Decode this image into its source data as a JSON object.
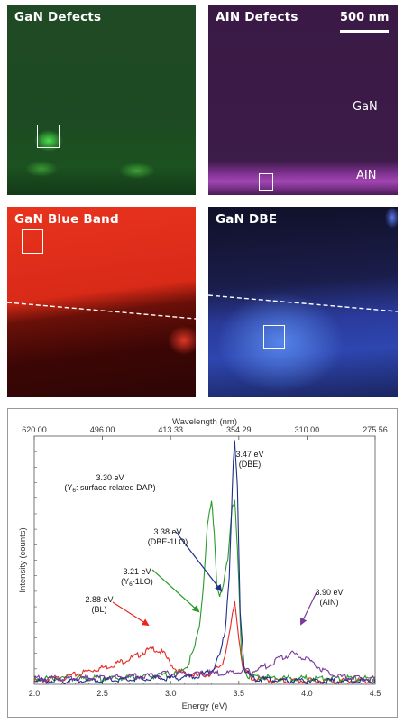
{
  "panels": {
    "gan_defects": {
      "title": "GaN Defects"
    },
    "ain_defects": {
      "title": "AIN Defects",
      "scale_label": "500 nm",
      "label_gan": "GaN",
      "label_ain": "AIN"
    },
    "gan_blue_band": {
      "title": "GaN Blue Band"
    },
    "gan_dbe": {
      "title": "GaN DBE"
    }
  },
  "colors": {
    "bl": "#e8281f",
    "yl": "#2a9a2a",
    "dbe": "#1f2f8a",
    "ain": "#7a3a9a",
    "axis": "#555555"
  },
  "chart_data": {
    "type": "line",
    "xlabel": "Energy (eV)",
    "x2label": "Wavelength (nm)",
    "ylabel": "Intensity (counts)",
    "xlim": [
      2.0,
      4.5
    ],
    "ylim": [
      0,
      1
    ],
    "x_ticks": [
      "2.0",
      "2.5",
      "3.0",
      "3.5",
      "4.0",
      "4.5"
    ],
    "x2_ticks": [
      "620.00",
      "496.00",
      "413.33",
      "354.29",
      "310.00",
      "275.56"
    ],
    "series": [
      {
        "color": "#e8281f",
        "points": [
          [
            2.0,
            0.02
          ],
          [
            2.2,
            0.03
          ],
          [
            2.4,
            0.06
          ],
          [
            2.55,
            0.08
          ],
          [
            2.65,
            0.1
          ],
          [
            2.75,
            0.12
          ],
          [
            2.82,
            0.14
          ],
          [
            2.88,
            0.15
          ],
          [
            2.95,
            0.13
          ],
          [
            3.0,
            0.09
          ],
          [
            3.05,
            0.06
          ],
          [
            3.1,
            0.05
          ],
          [
            3.2,
            0.04
          ],
          [
            3.3,
            0.05
          ],
          [
            3.38,
            0.09
          ],
          [
            3.43,
            0.2
          ],
          [
            3.47,
            0.34
          ],
          [
            3.5,
            0.2
          ],
          [
            3.53,
            0.07
          ],
          [
            3.6,
            0.03
          ],
          [
            3.8,
            0.02
          ],
          [
            4.0,
            0.02
          ],
          [
            4.2,
            0.02
          ],
          [
            4.5,
            0.02
          ]
        ]
      },
      {
        "color": "#2a9a2a",
        "points": [
          [
            2.0,
            0.03
          ],
          [
            2.3,
            0.03
          ],
          [
            2.6,
            0.03
          ],
          [
            2.9,
            0.04
          ],
          [
            3.05,
            0.05
          ],
          [
            3.12,
            0.08
          ],
          [
            3.17,
            0.14
          ],
          [
            3.21,
            0.24
          ],
          [
            3.24,
            0.4
          ],
          [
            3.27,
            0.65
          ],
          [
            3.3,
            0.74
          ],
          [
            3.32,
            0.62
          ],
          [
            3.34,
            0.4
          ],
          [
            3.36,
            0.36
          ],
          [
            3.38,
            0.38
          ],
          [
            3.42,
            0.52
          ],
          [
            3.45,
            0.72
          ],
          [
            3.47,
            0.75
          ],
          [
            3.49,
            0.55
          ],
          [
            3.52,
            0.12
          ],
          [
            3.56,
            0.04
          ],
          [
            3.8,
            0.03
          ],
          [
            4.2,
            0.03
          ],
          [
            4.5,
            0.03
          ]
        ]
      },
      {
        "color": "#1f2f8a",
        "points": [
          [
            2.0,
            0.02
          ],
          [
            2.4,
            0.02
          ],
          [
            2.8,
            0.03
          ],
          [
            3.0,
            0.03
          ],
          [
            3.2,
            0.04
          ],
          [
            3.3,
            0.06
          ],
          [
            3.36,
            0.12
          ],
          [
            3.4,
            0.22
          ],
          [
            3.43,
            0.45
          ],
          [
            3.46,
            0.9
          ],
          [
            3.47,
            0.98
          ],
          [
            3.49,
            0.8
          ],
          [
            3.51,
            0.3
          ],
          [
            3.54,
            0.07
          ],
          [
            3.6,
            0.03
          ],
          [
            3.8,
            0.02
          ],
          [
            4.2,
            0.02
          ],
          [
            4.5,
            0.02
          ]
        ]
      },
      {
        "color": "#7a3a9a",
        "points": [
          [
            2.0,
            0.03
          ],
          [
            2.4,
            0.03
          ],
          [
            2.8,
            0.04
          ],
          [
            3.0,
            0.05
          ],
          [
            3.2,
            0.05
          ],
          [
            3.4,
            0.05
          ],
          [
            3.6,
            0.06
          ],
          [
            3.7,
            0.08
          ],
          [
            3.8,
            0.11
          ],
          [
            3.9,
            0.13
          ],
          [
            4.0,
            0.11
          ],
          [
            4.1,
            0.07
          ],
          [
            4.2,
            0.04
          ],
          [
            4.35,
            0.03
          ],
          [
            4.5,
            0.03
          ]
        ]
      }
    ],
    "annotations": [
      {
        "id": "dap",
        "line1": "3.30 eV",
        "line2": "(Y",
        "sub": "6",
        "line2b": ": surface related DAP)"
      },
      {
        "id": "dbe",
        "line1": "3.47 eV",
        "line2": "(DBE)"
      },
      {
        "id": "dbe1lo",
        "line1": "3.38 eV",
        "line2": "(DBE-1LO)"
      },
      {
        "id": "y61lo",
        "line1": "3.21 eV",
        "line2": "(Y",
        "sub": "6",
        "line2b": "-1LO)"
      },
      {
        "id": "bl",
        "line1": "2.88 eV",
        "line2": "(BL)"
      },
      {
        "id": "ain",
        "line1": "3.90 eV",
        "line2": "(AIN)"
      }
    ]
  }
}
